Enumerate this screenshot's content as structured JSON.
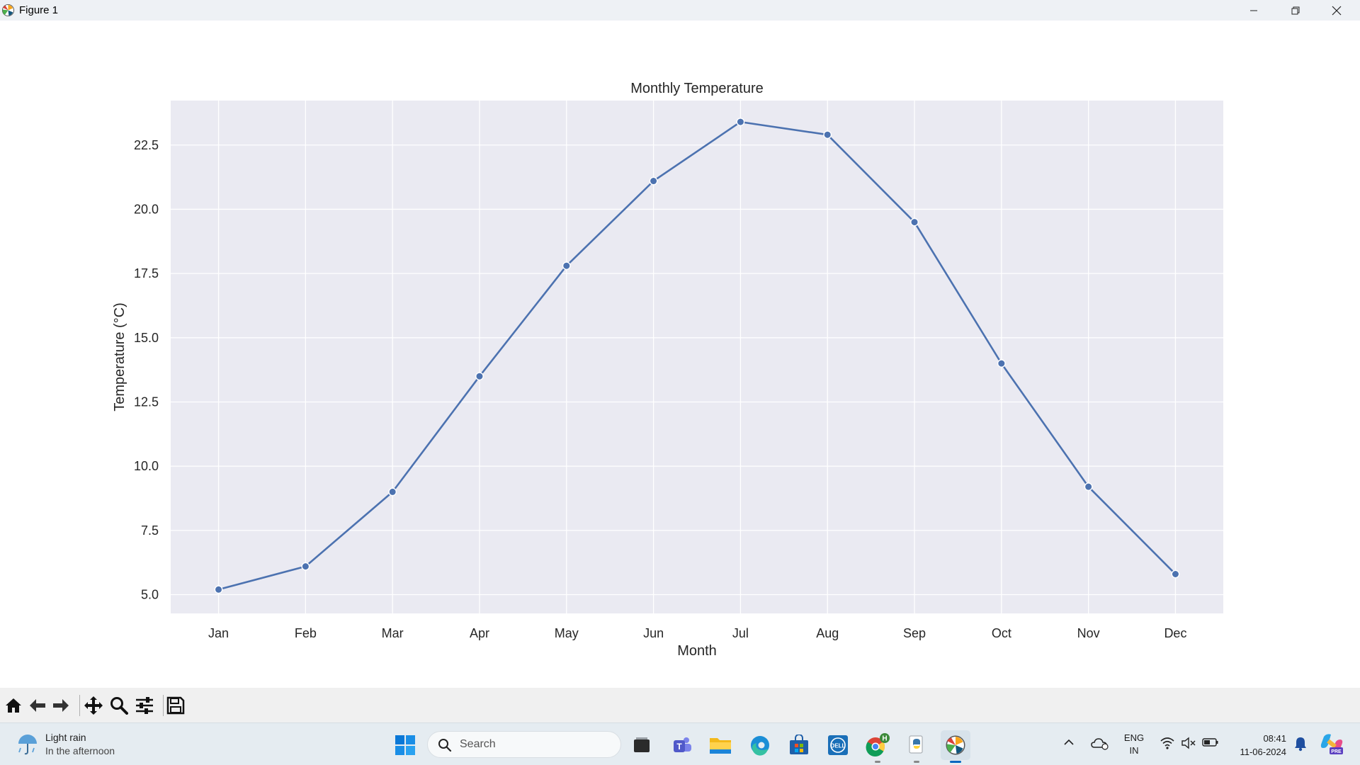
{
  "window": {
    "title": "Figure 1",
    "app_icon": "matplotlib-icon",
    "controls": [
      "minimize-icon",
      "restore-icon",
      "close-icon"
    ]
  },
  "chart_data": {
    "type": "line",
    "title": "Monthly Temperature",
    "xlabel": "Month",
    "ylabel": "Temperature (°C)",
    "categories": [
      "Jan",
      "Feb",
      "Mar",
      "Apr",
      "May",
      "Jun",
      "Jul",
      "Aug",
      "Sep",
      "Oct",
      "Nov",
      "Dec"
    ],
    "series": [
      {
        "values": [
          5.2,
          6.1,
          9.0,
          13.5,
          17.8,
          21.1,
          23.4,
          22.9,
          19.5,
          14.0,
          9.2,
          5.8
        ],
        "color": "#4c72b0",
        "marker": "circle"
      }
    ],
    "yticks": [
      5.0,
      7.5,
      10.0,
      12.5,
      15.0,
      17.5,
      20.0,
      22.5
    ],
    "ytick_labels": [
      "5.0",
      "7.5",
      "10.0",
      "12.5",
      "15.0",
      "17.5",
      "20.0",
      "22.5"
    ],
    "ylim": [
      4.27,
      24.23
    ],
    "grid": true,
    "style": "seaborn-darkgrid",
    "background": "#eaeaf2"
  },
  "toolbar": {
    "buttons": [
      "home-icon",
      "back-arrow-icon",
      "forward-arrow-icon",
      "pan-icon",
      "zoom-icon",
      "configure-subplots-icon",
      "save-icon"
    ]
  },
  "taskbar": {
    "weather": {
      "condition": "Light rain",
      "detail": "In the afternoon",
      "icon": "rain-umbrella-icon"
    },
    "search_placeholder": "Search",
    "apps": [
      "start-icon",
      "task-view-icon",
      "teams-icon",
      "file-explorer-icon",
      "edge-icon",
      "store-icon",
      "dell-icon",
      "chrome-icon",
      "python-icon",
      "matplotlib-icon"
    ],
    "chrome_badge": "H",
    "language": {
      "line1": "ENG",
      "line2": "IN"
    },
    "clock": {
      "time": "08:41",
      "date": "11-06-2024"
    },
    "accent": "#0067c0"
  }
}
